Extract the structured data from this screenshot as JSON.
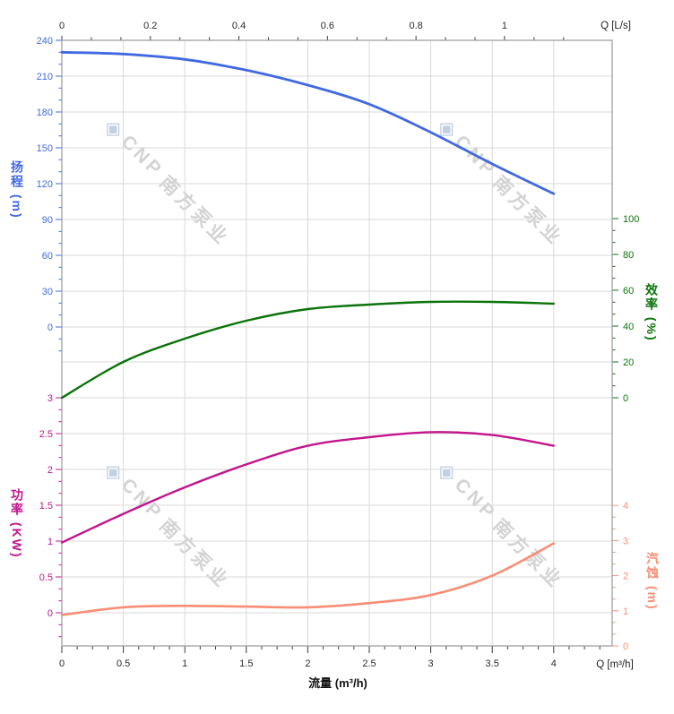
{
  "watermark": {
    "symbol": "◈",
    "brand": "CNP",
    "company": "南方泵业"
  },
  "chart_data": {
    "type": "line",
    "x": [
      0,
      0.5,
      1,
      1.5,
      2,
      2.5,
      3,
      3.5,
      4
    ],
    "x_unit": "m³/h",
    "series": [
      {
        "name": "扬程",
        "axis": "head",
        "unit": "m",
        "color": "#4169e1",
        "values": [
          230,
          228.5,
          224,
          215,
          202.5,
          186.5,
          163,
          136.5,
          111.5
        ]
      },
      {
        "name": "效率",
        "axis": "eff",
        "unit": "%",
        "color": "#0a730a",
        "values": [
          0,
          20,
          33,
          43,
          49.5,
          52,
          53.5,
          53.5,
          52.5
        ]
      },
      {
        "name": "功率",
        "axis": "power",
        "unit": "KW",
        "color": "#c3158c",
        "values": [
          0.98,
          1.38,
          1.75,
          2.07,
          2.33,
          2.45,
          2.52,
          2.48,
          2.33
        ]
      },
      {
        "name": "汽蚀",
        "axis": "npsh",
        "unit": "m",
        "color": "#f98d75",
        "values": [
          0.88,
          1.1,
          1.14,
          1.12,
          1.1,
          1.22,
          1.45,
          2.0,
          2.92
        ]
      }
    ],
    "axes": {
      "bottom": {
        "title": "流量 (m³/h)",
        "corner_label": "Q [m³/h]",
        "tick_labels": [
          "0",
          "0.5",
          "1",
          "1.5",
          "2",
          "2.5",
          "3",
          "3.5",
          "4"
        ],
        "range": [
          0,
          4.47
        ],
        "color": "#2b2b2b"
      },
      "top": {
        "corner_label": "Q [L/s]",
        "tick_labels": [
          "0",
          "0.2",
          "0.4",
          "0.6",
          "0.8",
          "1"
        ],
        "range": [
          0,
          1.243
        ],
        "color": "#2b2b2b"
      },
      "head": {
        "title": "扬程 (m)",
        "tick_labels": [
          "0",
          "30",
          "60",
          "90",
          "120",
          "150",
          "180",
          "210",
          "240"
        ],
        "tick_range": [
          0,
          240
        ],
        "color": "#4169e1"
      },
      "power": {
        "title": "功率 (KW)",
        "tick_labels": [
          "0",
          "0.5",
          "1",
          "1.5",
          "2",
          "2.5",
          "3"
        ],
        "tick_range": [
          0,
          3
        ],
        "color": "#c3158c"
      },
      "eff": {
        "title": "效率 (%)",
        "tick_labels": [
          "0",
          "20",
          "40",
          "60",
          "80",
          "100"
        ],
        "tick_range": [
          0,
          100
        ],
        "color": "#0a730a"
      },
      "npsh": {
        "title": "汽蚀 (m)",
        "tick_labels": [
          "0",
          "1",
          "2",
          "3",
          "4"
        ],
        "tick_range": [
          0,
          4
        ],
        "color": "#f98d75"
      }
    },
    "grid": true,
    "legend": false
  }
}
